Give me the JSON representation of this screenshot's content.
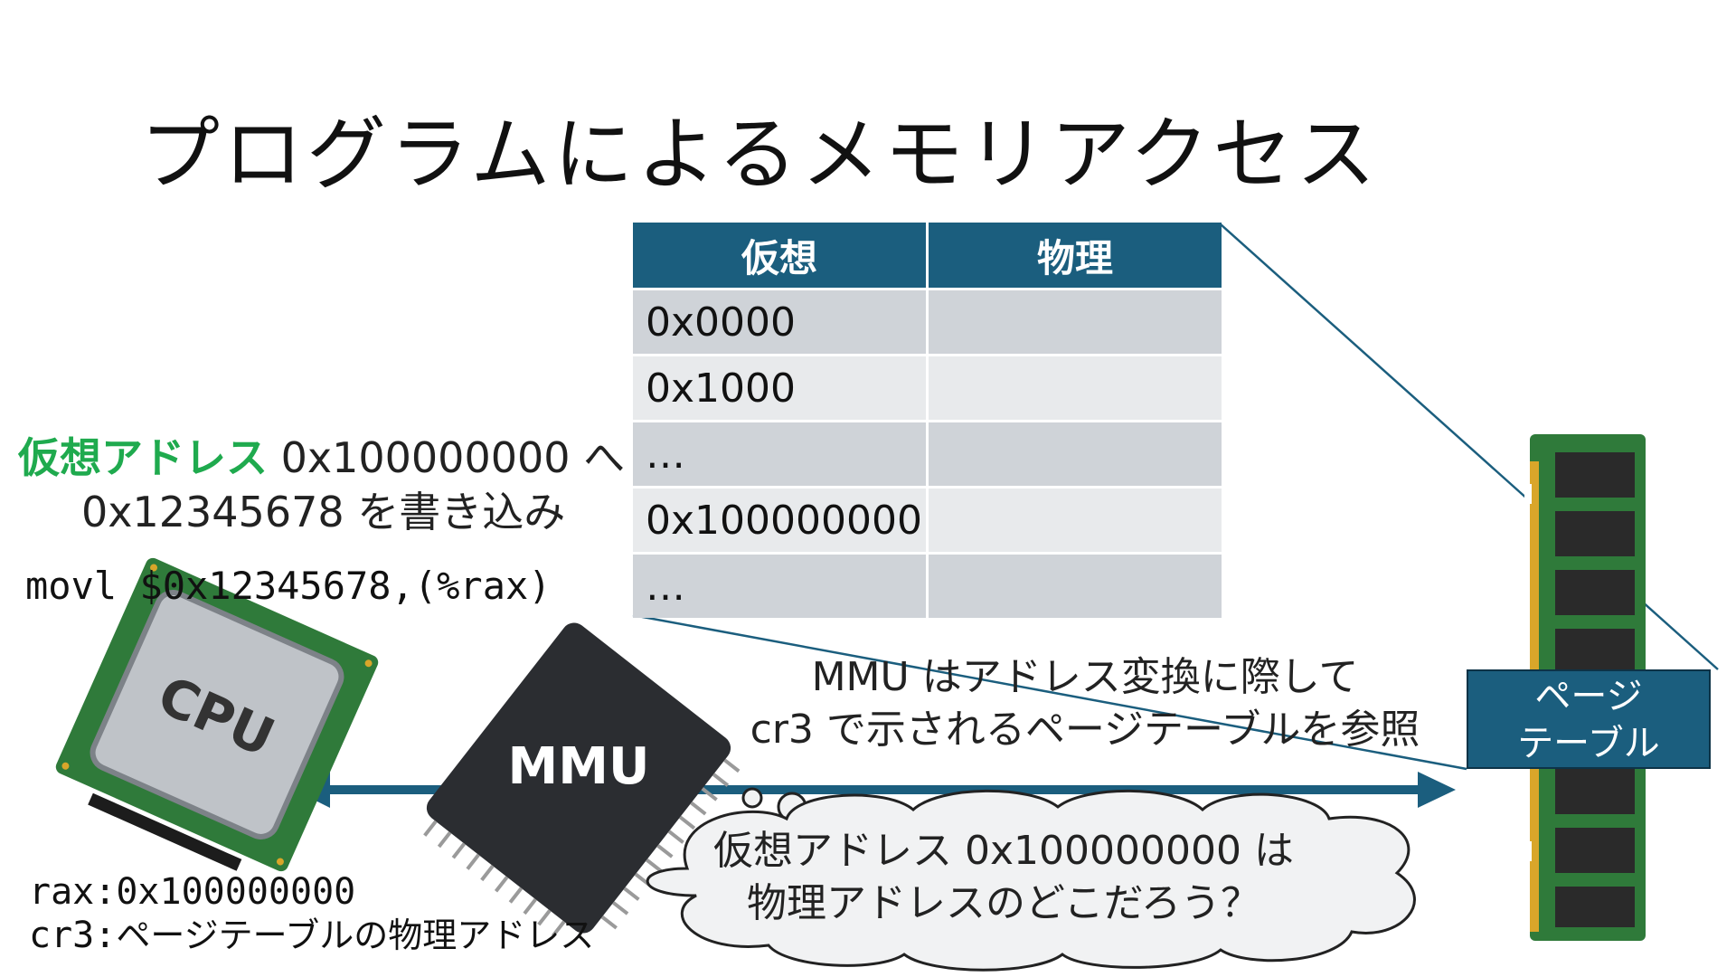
{
  "title": "プログラムによるメモリアクセス",
  "page_table": {
    "headers": [
      "仮想",
      "物理"
    ],
    "rows": [
      {
        "virtual": "0x0000",
        "physical": ""
      },
      {
        "virtual": "0x1000",
        "physical": ""
      },
      {
        "virtual": "…",
        "physical": ""
      },
      {
        "virtual": "0x100000000",
        "physical": ""
      },
      {
        "virtual": "…",
        "physical": ""
      }
    ]
  },
  "instruction": {
    "highlight": "仮想アドレス",
    "line1_rest": " 0x100000000 へ",
    "line2": "0x12345678 を書き込み",
    "asm": "movl $0x12345678,(%rax)"
  },
  "cpu": {
    "label": "CPU"
  },
  "mmu": {
    "label": "MMU",
    "note_line1": "MMU はアドレス変換に際して",
    "note_line2": "cr3 で示されるページテーブルを参照"
  },
  "registers": {
    "rax_label": "rax:",
    "rax_value": "0x100000000",
    "cr3_label": "cr3:",
    "cr3_value": "ページテーブルの物理アドレス"
  },
  "page_table_label": {
    "line1": "ページ",
    "line2": "テーブル"
  },
  "thought": {
    "line1": "仮想アドレス 0x100000000 は",
    "line2": "物理アドレスのどこだろう？"
  },
  "colors": {
    "accent": "#1b5e7e",
    "highlight": "#1faa4e",
    "chip": "#2b2d31",
    "pcb": "#2f7a3a"
  }
}
